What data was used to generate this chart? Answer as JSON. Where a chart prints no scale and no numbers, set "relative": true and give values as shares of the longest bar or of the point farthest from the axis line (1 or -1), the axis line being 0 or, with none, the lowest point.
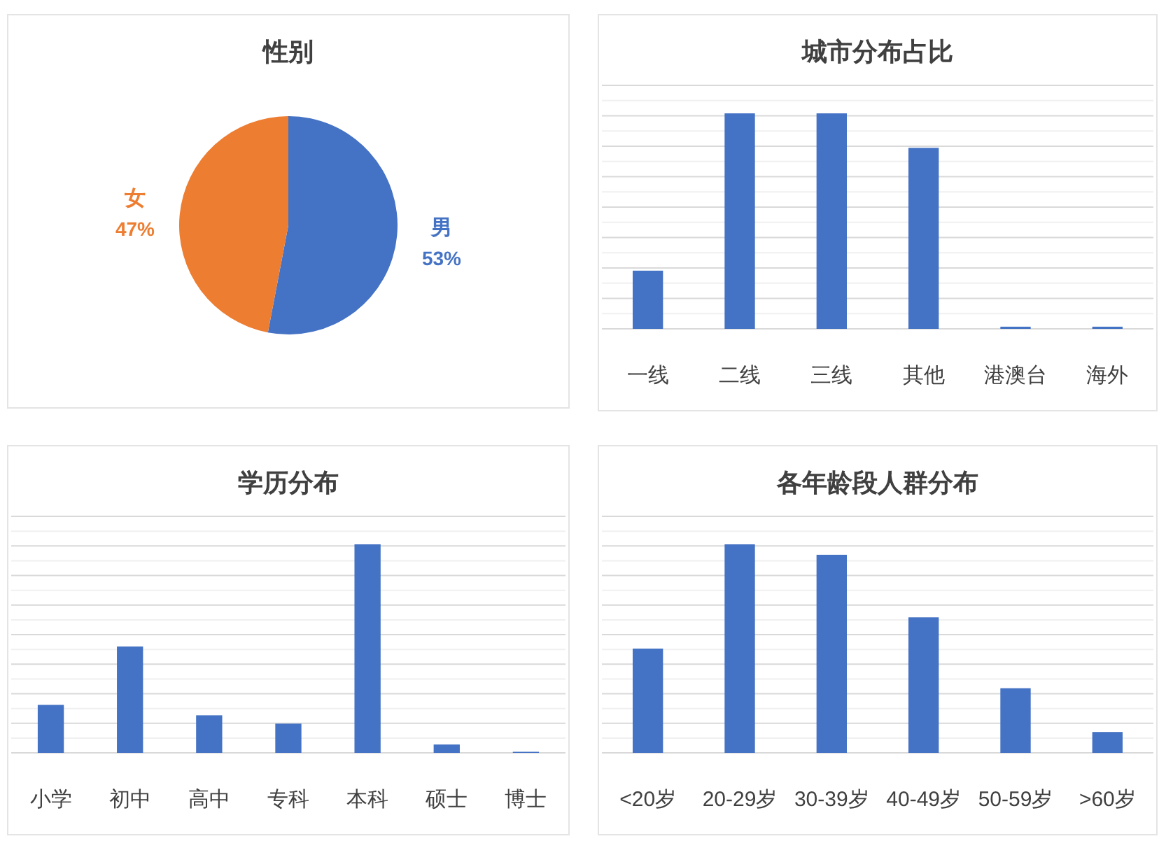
{
  "chart_data": [
    {
      "type": "pie",
      "title": "性别",
      "categories": [
        "男",
        "女"
      ],
      "values": [
        53,
        47
      ],
      "colors": [
        "#4472c4",
        "#ed7d31"
      ],
      "value_labels": [
        "53%",
        "47%"
      ]
    },
    {
      "type": "bar",
      "title": "城市分布占比",
      "categories": [
        "一线",
        "二线",
        "三线",
        "其他",
        "港澳台",
        "海外"
      ],
      "values": [
        0.27,
        1,
        1,
        0.84,
        0.01,
        0.01
      ],
      "color": "#4472c4",
      "relative": true,
      "grid": true
    },
    {
      "type": "bar",
      "title": "学历分布",
      "categories": [
        "小学",
        "初中",
        "高中",
        "专科",
        "本科",
        "硕士",
        "博士"
      ],
      "values": [
        0.23,
        0.51,
        0.18,
        0.14,
        1,
        0.04,
        0.005
      ],
      "color": "#4472c4",
      "relative": true,
      "grid": true
    },
    {
      "type": "bar",
      "title": "各年龄段人群分布",
      "categories": [
        "<20岁",
        "20-29岁",
        "30-39岁",
        "40-49岁",
        "50-59岁",
        ">60岁"
      ],
      "values": [
        0.5,
        1,
        0.95,
        0.65,
        0.31,
        0.1
      ],
      "color": "#4472c4",
      "relative": true,
      "grid": true
    }
  ]
}
